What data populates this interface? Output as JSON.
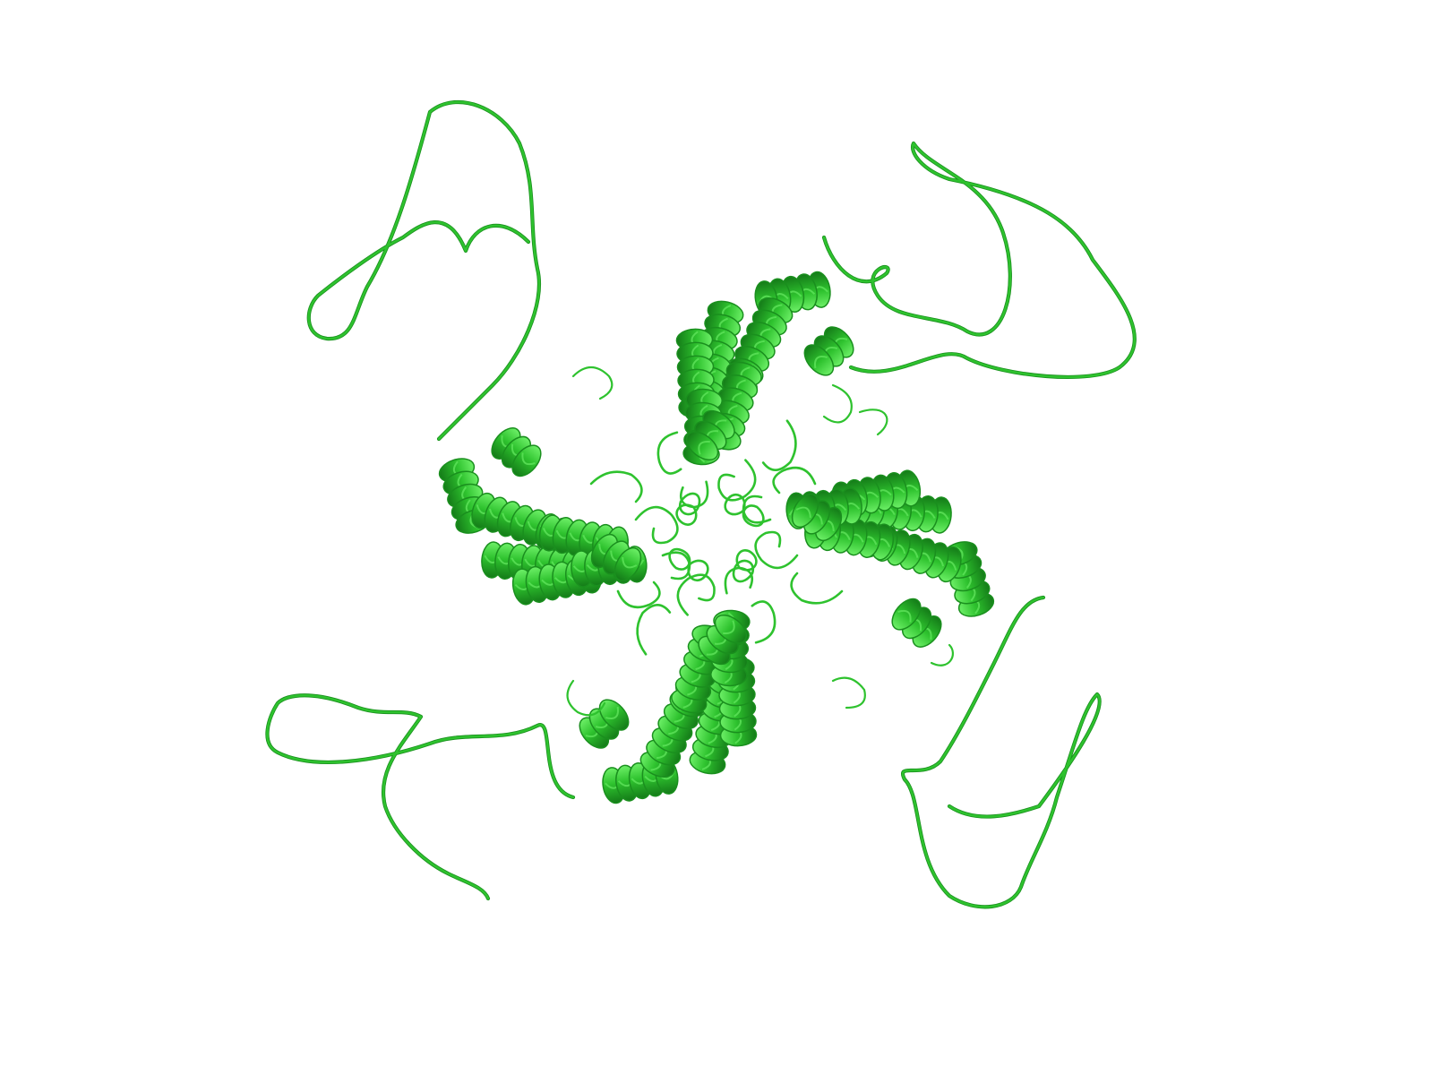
{
  "scene": {
    "kind": "protein-cartoon-render",
    "background_color": "#ffffff",
    "ribbon_color": "#2ec22e",
    "ribbon_dark": "#1a8f1e",
    "ribbon_light": "#5fe35b",
    "assembly_symmetry": 4,
    "elements": [
      "alpha-helix",
      "coil-loop"
    ]
  }
}
